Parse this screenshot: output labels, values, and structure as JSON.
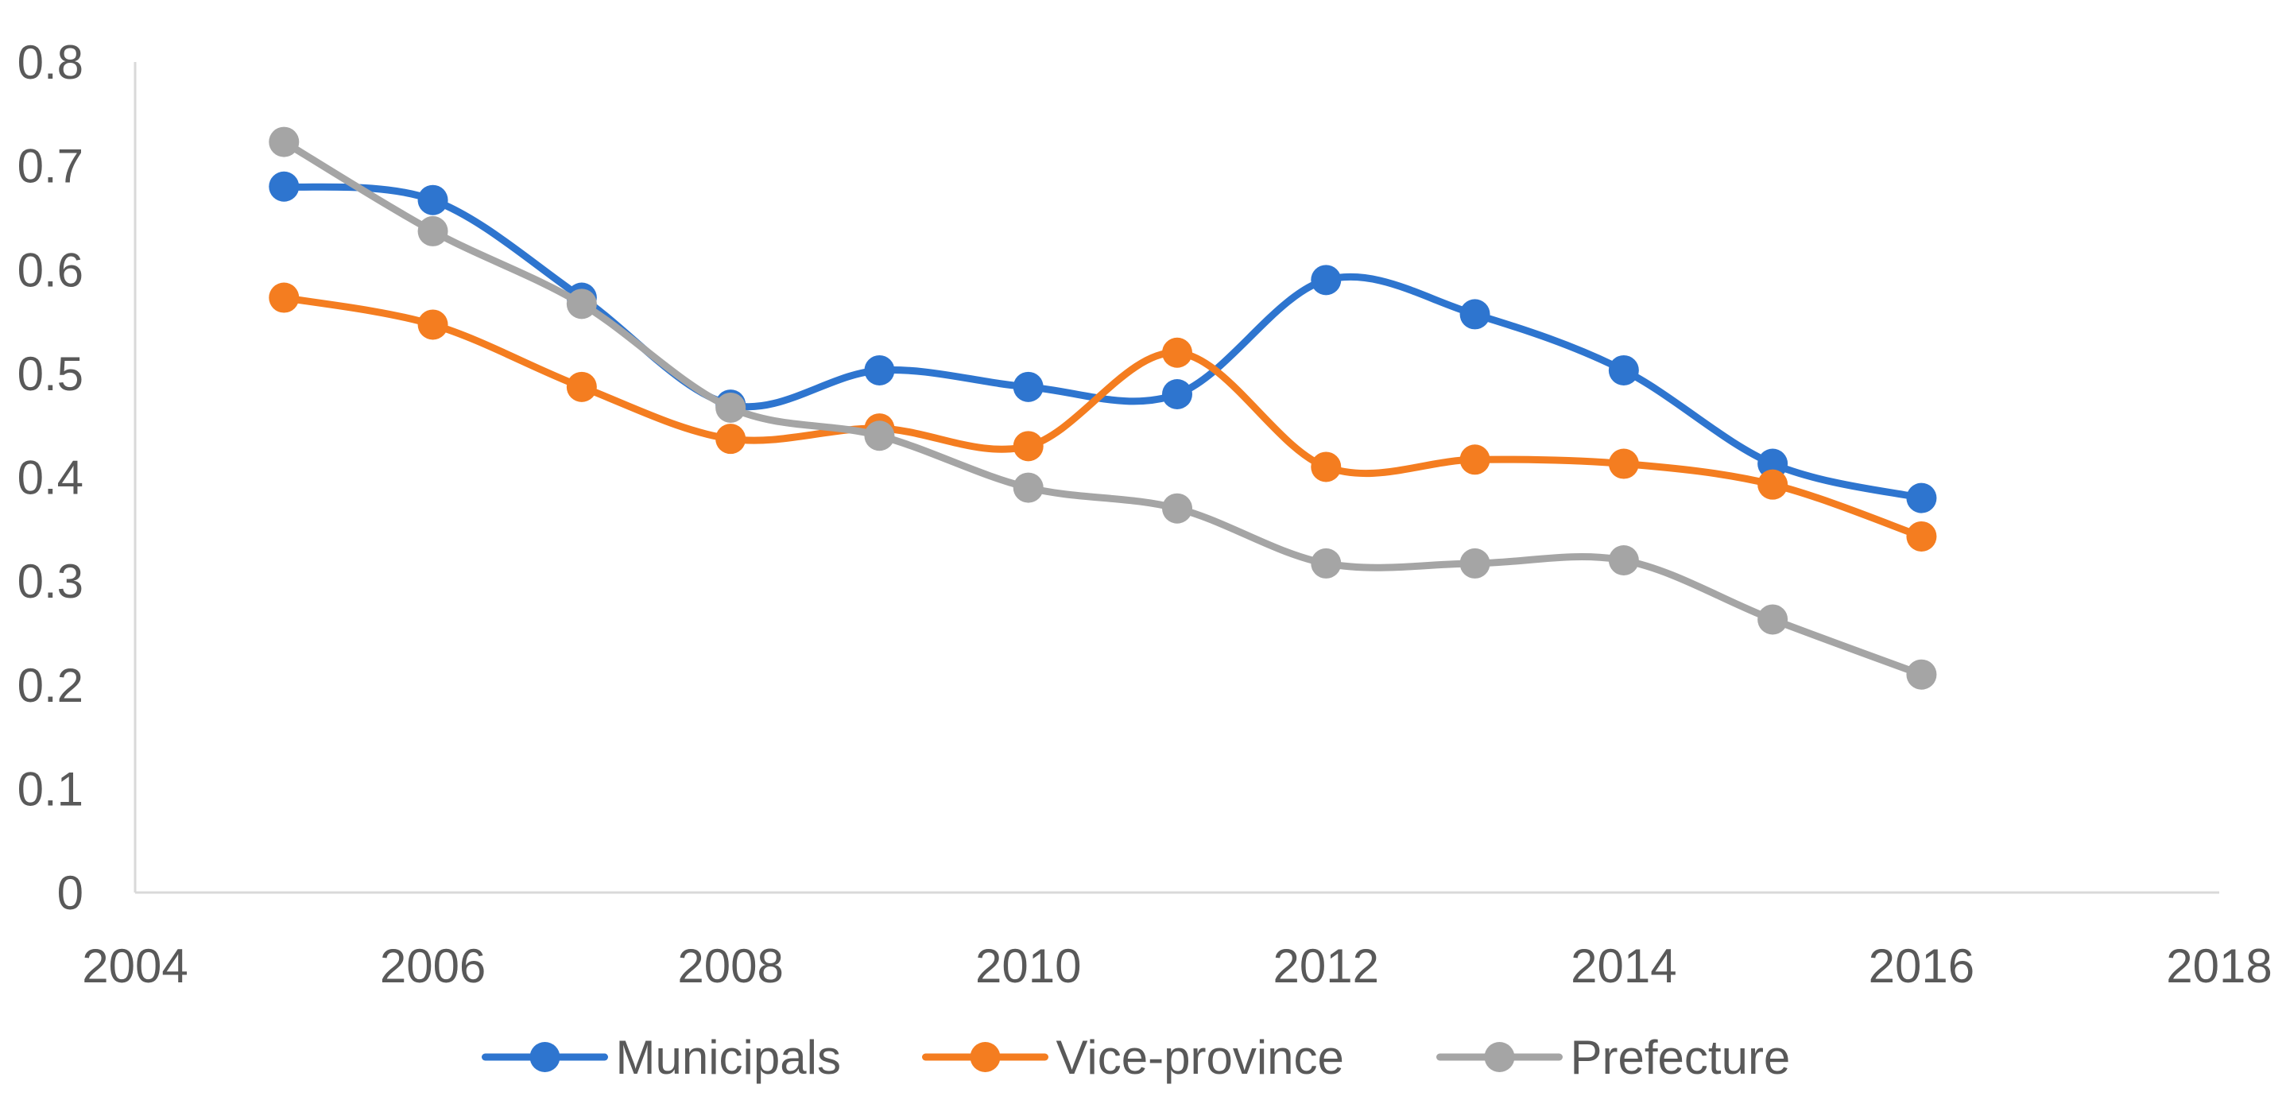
{
  "chart_data": {
    "type": "line",
    "title": "",
    "xlabel": "",
    "ylabel": "",
    "xlim": [
      2004,
      2018
    ],
    "ylim": [
      0,
      0.8
    ],
    "grid": false,
    "legend_position": "bottom",
    "x_ticks": [
      "2004",
      "2006",
      "2008",
      "2010",
      "2012",
      "2014",
      "2016",
      "2018"
    ],
    "x_tick_values": [
      2004,
      2006,
      2008,
      2010,
      2012,
      2014,
      2016,
      2018
    ],
    "y_ticks": [
      "0",
      "0.1",
      "0.2",
      "0.3",
      "0.4",
      "0.5",
      "0.6",
      "0.7",
      "0.8"
    ],
    "y_tick_values": [
      0,
      0.1,
      0.2,
      0.3,
      0.4,
      0.5,
      0.6,
      0.7,
      0.8
    ],
    "x": [
      2005,
      2006,
      2007,
      2008,
      2009,
      2010,
      2011,
      2012,
      2013,
      2014,
      2015,
      2016
    ],
    "series": [
      {
        "name": "Municipals",
        "color": "#2E75CF",
        "values": [
          0.68,
          0.667,
          0.573,
          0.47,
          0.503,
          0.487,
          0.48,
          0.59,
          0.557,
          0.503,
          0.413,
          0.38
        ]
      },
      {
        "name": "Vice-province",
        "color": "#F47D20",
        "values": [
          0.573,
          0.547,
          0.487,
          0.437,
          0.447,
          0.43,
          0.52,
          0.41,
          0.417,
          0.413,
          0.393,
          0.343
        ]
      },
      {
        "name": "Prefecture",
        "color": "#A5A5A5",
        "values": [
          0.723,
          0.637,
          0.567,
          0.467,
          0.44,
          0.39,
          0.37,
          0.317,
          0.317,
          0.32,
          0.263,
          0.21
        ]
      }
    ]
  }
}
